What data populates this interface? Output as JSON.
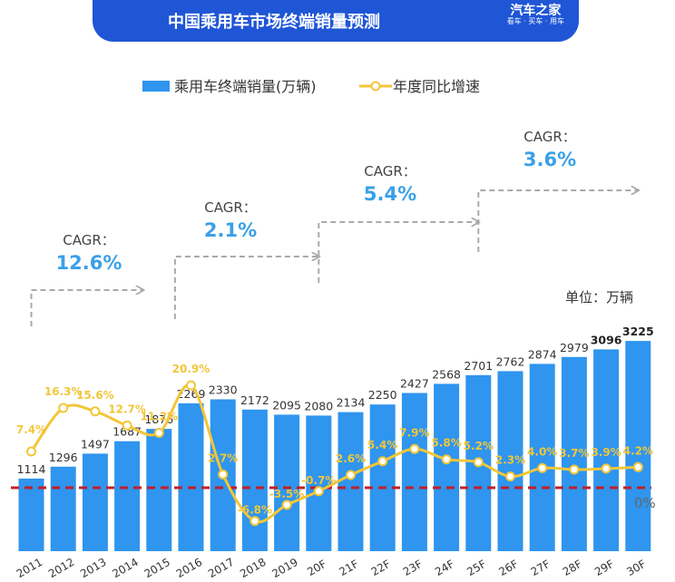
{
  "header": {
    "title": "中国乘用车市场终端销量预测",
    "logo_main": "汽车之家",
    "logo_sub": "看车 · 买车 · 用车"
  },
  "chart_data": {
    "type": "bar",
    "unit_label": "单位：万辆",
    "categories": [
      "2011",
      "2012",
      "2013",
      "2014",
      "2015",
      "2016",
      "2017",
      "2018",
      "2019",
      "2020F",
      "2021F",
      "2022F",
      "2023F",
      "2024F",
      "2025F",
      "2026F",
      "2027F",
      "2028F",
      "2029F",
      "2030F"
    ],
    "tick_labels": [
      "2011",
      "2012",
      "2013",
      "2014",
      "2015",
      "2016",
      "2017",
      "2018",
      "2019",
      "20F",
      "21F",
      "22F",
      "23F",
      "24F",
      "25F",
      "26F",
      "27F",
      "28F",
      "29F",
      "30F"
    ],
    "series": [
      {
        "name": "乘用车终端销量(万辆)",
        "type": "bar",
        "color": "#2f95ee",
        "values": [
          1114,
          1296,
          1497,
          1687,
          1876,
          2269,
          2330,
          2172,
          2095,
          2080,
          2134,
          2250,
          2427,
          2568,
          2701,
          2762,
          2874,
          2979,
          3096,
          3225
        ],
        "labels": [
          "1114",
          "1296",
          "1497",
          "1687",
          "1876",
          "2269",
          "2330",
          "2172",
          "2095",
          "2080",
          "2134",
          "2250",
          "2427",
          "2568",
          "2701",
          "2762",
          "2874",
          "2979",
          "3096",
          "3225"
        ]
      },
      {
        "name": "年度同比增速",
        "type": "line",
        "color": "#f2c63a",
        "values": [
          7.4,
          16.3,
          15.6,
          12.7,
          11.2,
          20.9,
          2.7,
          -6.8,
          -3.5,
          -0.7,
          2.6,
          5.4,
          7.9,
          5.8,
          5.2,
          2.3,
          4.0,
          3.7,
          3.9,
          4.2
        ],
        "labels": [
          "7.4%",
          "16.3%",
          "15.6%",
          "12.7%",
          "11.2%",
          "20.9%",
          "2.7%",
          "-6.8%",
          "-3.5%",
          "-0.7%",
          "2.6%",
          "5.4%",
          "7.9%",
          "5.8%",
          "5.2%",
          "2.3%",
          "4.0%",
          "3.7%",
          "3.9%",
          "4.2%"
        ]
      }
    ],
    "zero_line_label": "0%",
    "zero_line_color": "#c0202a",
    "cagr": [
      {
        "label": "CAGR：",
        "value": "12.6%"
      },
      {
        "label": "CAGR：",
        "value": "2.1%"
      },
      {
        "label": "CAGR：",
        "value": "5.4%"
      },
      {
        "label": "CAGR：",
        "value": "3.6%"
      }
    ],
    "legend_position": "top",
    "grid": false
  }
}
